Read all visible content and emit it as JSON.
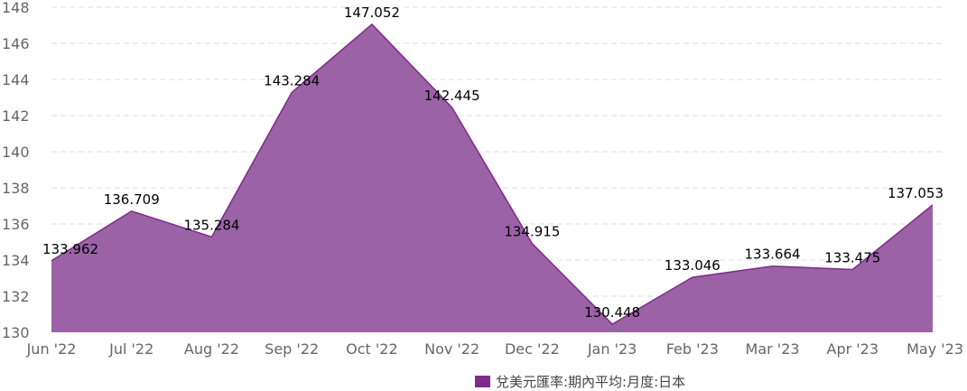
{
  "chart_data": {
    "type": "area",
    "categories": [
      "Jun '22",
      "Jul '22",
      "Aug '22",
      "Sep '22",
      "Oct '22",
      "Nov '22",
      "Dec '22",
      "Jan '23",
      "Feb '23",
      "Mar '23",
      "Apr '23",
      "May '23"
    ],
    "series": [
      {
        "name": "兌美元匯率:期內平均:月度:日本",
        "values": [
          133.962,
          136.709,
          135.284,
          143.284,
          147.052,
          142.445,
          134.915,
          130.448,
          133.046,
          133.664,
          133.475,
          137.053
        ],
        "labels": [
          "133.962",
          "136.709",
          "135.284",
          "143.284",
          "147.052",
          "142.445",
          "134.915",
          "130.448",
          "133.046",
          "133.664",
          "133.475",
          "137.053"
        ]
      }
    ],
    "ylim": [
      130,
      148
    ],
    "yticks": [
      "130",
      "132",
      "134",
      "136",
      "138",
      "140",
      "142",
      "144",
      "146",
      "148"
    ],
    "grid": true,
    "legend": "bottom-center",
    "colors": {
      "fill": "#9b62a6",
      "line": "#7d2c8c",
      "swatch": "#7d2c8c",
      "grid": "#dddddd"
    }
  }
}
